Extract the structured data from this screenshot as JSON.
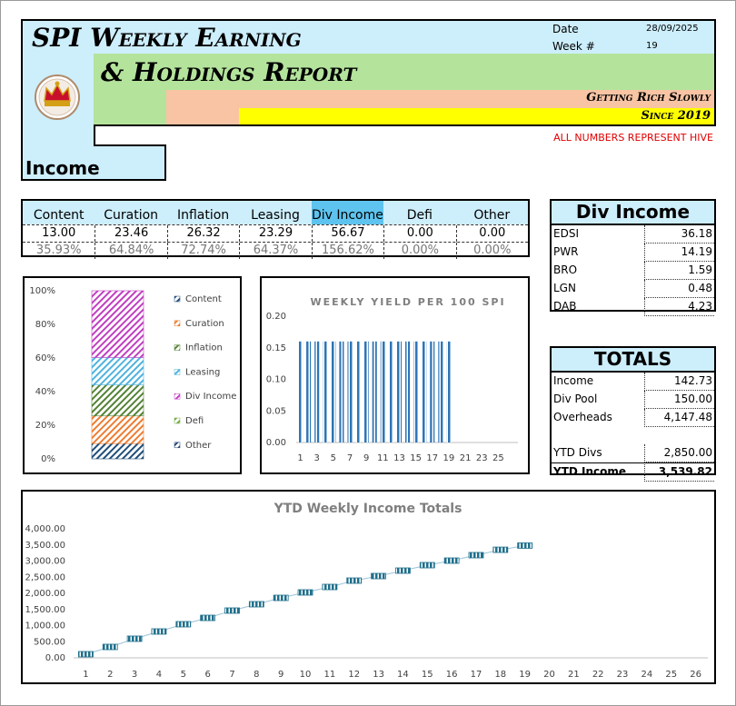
{
  "header": {
    "title_line1": "SPI Weekly Earning",
    "title_line2": "& Holdings Report",
    "tagline": "Getting Rich Slowly",
    "since": "Since 2019",
    "date_label": "Date",
    "date": "28/09/2025",
    "week_label": "Week #",
    "week": 19,
    "note": "ALL NUMBERS REPRESENT HIVE",
    "section": "Income"
  },
  "income_table": {
    "headers": [
      "Content",
      "Curation",
      "Inflation",
      "Leasing",
      "Div Income",
      "Defi",
      "Other"
    ],
    "values": [
      "13.00",
      "23.46",
      "26.32",
      "23.29",
      "56.67",
      "0.00",
      "0.00"
    ],
    "percents": [
      "35.93%",
      "64.84%",
      "72.74%",
      "64.37%",
      "156.62%",
      "0.00%",
      "0.00%"
    ]
  },
  "div_income": {
    "title": "Div Income",
    "rows": [
      [
        "EDSI",
        "36.18"
      ],
      [
        "PWR",
        "14.19"
      ],
      [
        "BRO",
        "1.59"
      ],
      [
        "LGN",
        "0.48"
      ],
      [
        "DAB",
        "4.23"
      ]
    ]
  },
  "totals": {
    "title": "TOTALS",
    "rows": [
      [
        "Income",
        "142.73"
      ],
      [
        "Div Pool",
        "150.00"
      ],
      [
        "Overheads",
        "4,147.48"
      ],
      [
        "YTD Divs",
        "2,850.00"
      ],
      [
        "YTD Income",
        "3,539.82"
      ]
    ]
  },
  "chart_data": [
    {
      "type": "bar",
      "stacked": true,
      "categories": [
        null
      ],
      "series": [
        {
          "name": "Content",
          "color": "#1f4e79",
          "values": [
            9.11
          ]
        },
        {
          "name": "Curation",
          "color": "#ed7d31",
          "values": [
            16.44
          ]
        },
        {
          "name": "Inflation",
          "color": "#548235",
          "values": [
            18.44
          ]
        },
        {
          "name": "Leasing",
          "color": "#4fb3de",
          "values": [
            16.32
          ]
        },
        {
          "name": "Div Income",
          "color": "#c13ec1",
          "values": [
            39.7
          ]
        },
        {
          "name": "Defi",
          "color": "#70ad47",
          "values": [
            0
          ]
        },
        {
          "name": "Other",
          "color": "#264478",
          "values": [
            0
          ]
        }
      ],
      "ylim": [
        0,
        100
      ],
      "yticks": [
        {
          "value": 0,
          "label": "0%"
        },
        {
          "value": 20,
          "label": "20%"
        },
        {
          "value": 40,
          "label": "40%"
        },
        {
          "value": 60,
          "label": "60%"
        },
        {
          "value": 80,
          "label": "80%"
        },
        {
          "value": 100,
          "label": "100%"
        }
      ],
      "legend": "right",
      "grid": false
    },
    {
      "type": "bar",
      "title": "WEEKLY YIELD PER 100 SPI",
      "categories": [
        1,
        null,
        3,
        null,
        5,
        null,
        7,
        null,
        9,
        null,
        11,
        null,
        13,
        null,
        15,
        null,
        17,
        null,
        19,
        null,
        21,
        null,
        23,
        null,
        25,
        null
      ],
      "values": [
        0.16,
        0.16,
        0.16,
        0.16,
        0.16,
        0.16,
        0.16,
        0.16,
        0.16,
        0.16,
        0.16,
        0.16,
        0.16,
        0.16,
        0.16,
        0.16,
        0.16,
        0.16,
        0.16,
        null,
        null,
        null,
        null,
        null,
        null,
        null
      ],
      "color": "#2e75b6",
      "ylim": [
        0,
        0.2
      ],
      "yticks": [
        {
          "value": 0,
          "label": "0.00"
        },
        {
          "value": 0.05,
          "label": "0.05"
        },
        {
          "value": 0.1,
          "label": "0.10"
        },
        {
          "value": 0.15,
          "label": "0.15"
        },
        {
          "value": 0.2,
          "label": "0.20"
        }
      ],
      "grid": false
    },
    {
      "type": "line",
      "title": "YTD Weekly Income Totals",
      "categories": [
        1,
        2,
        3,
        4,
        5,
        6,
        7,
        8,
        9,
        10,
        11,
        12,
        13,
        14,
        15,
        16,
        17,
        18,
        19,
        20,
        21,
        22,
        23,
        24,
        25,
        26
      ],
      "values": [
        113,
        338,
        592,
        817,
        1042,
        1239,
        1465,
        1662,
        1859,
        2028,
        2197,
        2394,
        2535,
        2704,
        2873,
        3014,
        3183,
        3350,
        3480,
        null,
        null,
        null,
        null,
        null,
        null,
        null
      ],
      "color": "#1f6f8b",
      "ylim": [
        0,
        4000
      ],
      "yticks": [
        {
          "value": 0,
          "label": "0.00"
        },
        {
          "value": 500,
          "label": "500.00"
        },
        {
          "value": 1000,
          "label": "1,000.00"
        },
        {
          "value": 1500,
          "label": "1,500.00"
        },
        {
          "value": 2000,
          "label": "2,000.00"
        },
        {
          "value": 2500,
          "label": "2,500.00"
        },
        {
          "value": 3000,
          "label": "3,000.00"
        },
        {
          "value": 3500,
          "label": "3,500.00"
        },
        {
          "value": 4000,
          "label": "4,000.00"
        }
      ],
      "grid": false
    }
  ]
}
